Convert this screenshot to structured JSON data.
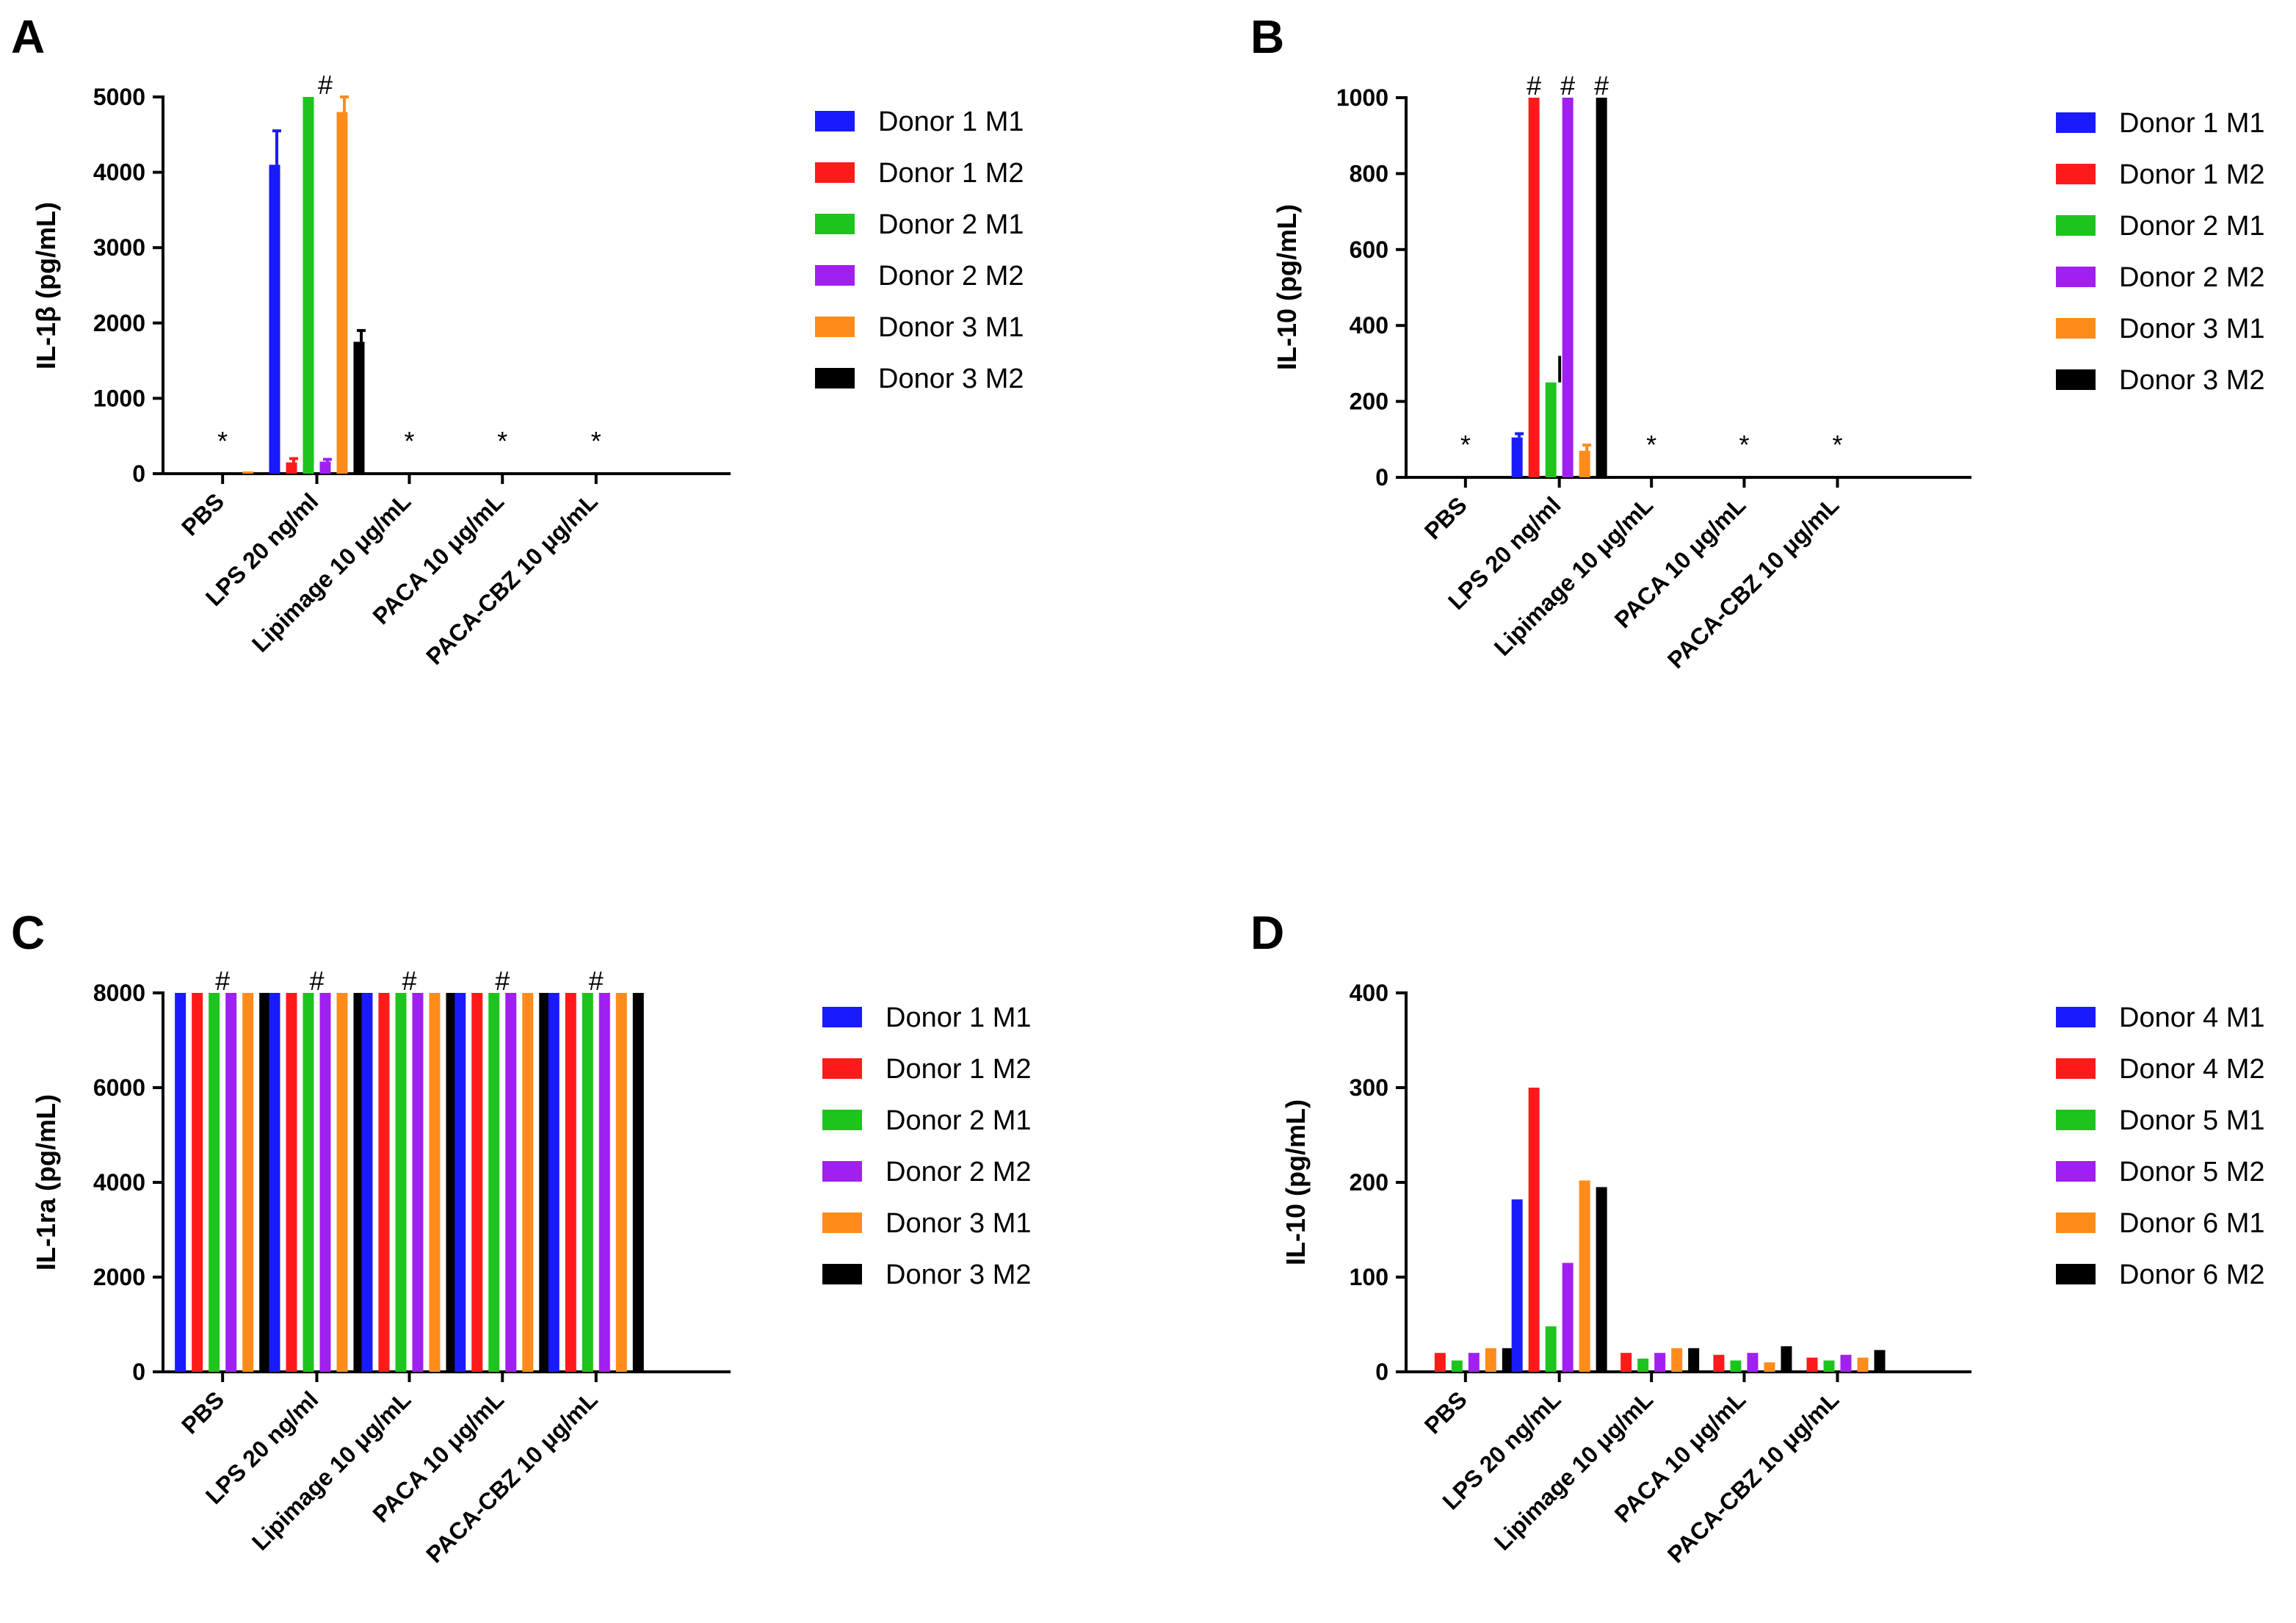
{
  "chart_data": [
    {
      "panel": "A",
      "type": "bar",
      "ylabel": "IL-1β (pg/mL)",
      "ylim": [
        0,
        5000
      ],
      "yticks": [
        "0",
        "1000",
        "2000",
        "3000",
        "4000",
        "5000"
      ],
      "categories": [
        "PBS",
        "LPS 20 ng/ml",
        "Lipimage 10 μg/mL",
        "PACA 10 μg/mL",
        "PACA-CBZ 10 μg/mL"
      ],
      "series": [
        {
          "name": "Donor 1 M1",
          "color": "#1a1aff",
          "values": [
            0,
            4100,
            0,
            0,
            0
          ],
          "errors": [
            0,
            450,
            0,
            0,
            0
          ]
        },
        {
          "name": "Donor 1 M2",
          "color": "#ff1a1a",
          "values": [
            0,
            150,
            0,
            0,
            0
          ],
          "errors": [
            0,
            50,
            0,
            0,
            0
          ]
        },
        {
          "name": "Donor 2 M1",
          "color": "#1ec41e",
          "values": [
            0,
            5000,
            0,
            0,
            0
          ],
          "errors": [
            0,
            0,
            0,
            0,
            0
          ]
        },
        {
          "name": "Donor 2 M2",
          "color": "#a020f0",
          "values": [
            0,
            160,
            0,
            0,
            0
          ],
          "errors": [
            0,
            30,
            0,
            0,
            0
          ]
        },
        {
          "name": "Donor 3 M1",
          "color": "#ff8c1a",
          "values": [
            30,
            4800,
            0,
            0,
            0
          ],
          "errors": [
            0,
            200,
            0,
            0,
            0
          ]
        },
        {
          "name": "Donor 3 M2",
          "color": "#000000",
          "values": [
            0,
            1750,
            0,
            0,
            0
          ],
          "errors": [
            0,
            150,
            0,
            0,
            0
          ]
        }
      ],
      "annotations": [
        "*",
        "#",
        "*",
        "*",
        "*"
      ]
    },
    {
      "panel": "B",
      "type": "bar",
      "ylabel": "IL-10 (pg/mL)",
      "ylim": [
        0,
        1000
      ],
      "yticks": [
        "0",
        "200",
        "400",
        "600",
        "800",
        "1000"
      ],
      "categories": [
        "PBS",
        "LPS 20 ng/ml",
        "Lipimage 10 μg/mL",
        "PACA 10 μg/mL",
        "PACA-CBZ 10 μg/mL"
      ],
      "series": [
        {
          "name": "Donor 1 M1",
          "color": "#1a1aff",
          "values": [
            0,
            105,
            0,
            0,
            0
          ],
          "errors": [
            0,
            10,
            0,
            0,
            0
          ]
        },
        {
          "name": "Donor 1 M2",
          "color": "#ff1a1a",
          "values": [
            0,
            1000,
            0,
            0,
            0
          ],
          "errors": [
            0,
            0,
            0,
            0,
            0
          ]
        },
        {
          "name": "Donor 2 M1",
          "color": "#1ec41e",
          "values": [
            0,
            250,
            0,
            0,
            0
          ],
          "errors": [
            0,
            0,
            0,
            0,
            0
          ]
        },
        {
          "name": "Donor 2 M2",
          "color": "#a020f0",
          "values": [
            0,
            1000,
            0,
            0,
            0
          ],
          "errors": [
            0,
            0,
            0,
            0,
            0
          ]
        },
        {
          "name": "Donor 3 M1",
          "color": "#ff8c1a",
          "values": [
            0,
            70,
            0,
            0,
            0
          ],
          "errors": [
            0,
            15,
            0,
            0,
            0
          ]
        },
        {
          "name": "Donor 3 M2",
          "color": "#000000",
          "values": [
            0,
            1000,
            0,
            0,
            0
          ],
          "errors": [
            0,
            0,
            0,
            0,
            0
          ]
        }
      ],
      "annotations": [
        "*",
        "# # #",
        "*",
        "*",
        "*"
      ],
      "extra_errors": [
        {
          "series": 2,
          "category": 1,
          "top": 320
        }
      ]
    },
    {
      "panel": "C",
      "type": "bar",
      "ylabel": "IL-1ra (pg/mL)",
      "ylim": [
        0,
        8000
      ],
      "yticks": [
        "0",
        "2000",
        "4000",
        "6000",
        "8000"
      ],
      "categories": [
        "PBS",
        "LPS 20 ng/ml",
        "Lipimage 10 μg/mL",
        "PACA 10 μg/mL",
        "PACA-CBZ 10 μg/mL"
      ],
      "series": [
        {
          "name": "Donor 1 M1",
          "color": "#1a1aff",
          "values": [
            8000,
            8000,
            8000,
            8000,
            8000
          ]
        },
        {
          "name": "Donor 1 M2",
          "color": "#ff1a1a",
          "values": [
            8000,
            8000,
            8000,
            8000,
            8000
          ]
        },
        {
          "name": "Donor 2 M1",
          "color": "#1ec41e",
          "values": [
            8000,
            8000,
            8000,
            8000,
            8000
          ]
        },
        {
          "name": "Donor 2 M2",
          "color": "#a020f0",
          "values": [
            8000,
            8000,
            8000,
            8000,
            8000
          ]
        },
        {
          "name": "Donor 3 M1",
          "color": "#ff8c1a",
          "values": [
            8000,
            8000,
            8000,
            8000,
            8000
          ]
        },
        {
          "name": "Donor 3 M2",
          "color": "#000000",
          "values": [
            8000,
            8000,
            8000,
            8000,
            8000
          ]
        }
      ],
      "annotations": [
        "#",
        "#",
        "#",
        "#",
        "#"
      ]
    },
    {
      "panel": "D",
      "type": "bar",
      "ylabel": "IL-10 (pg/mL)",
      "ylim": [
        0,
        400
      ],
      "yticks": [
        "0",
        "100",
        "200",
        "300",
        "400"
      ],
      "categories": [
        "PBS",
        "LPS 20 ng/mL",
        "Lipimage 10 μg/mL",
        "PACA 10 μg/mL",
        "PACA-CBZ 10 μg/mL"
      ],
      "series": [
        {
          "name": "Donor 4 M1",
          "color": "#1a1aff",
          "values": [
            0,
            182,
            0,
            0,
            0
          ]
        },
        {
          "name": "Donor 4 M2",
          "color": "#ff1a1a",
          "values": [
            20,
            300,
            20,
            18,
            15
          ]
        },
        {
          "name": "Donor 5 M1",
          "color": "#1ec41e",
          "values": [
            12,
            48,
            14,
            12,
            12
          ]
        },
        {
          "name": "Donor 5 M2",
          "color": "#a020f0",
          "values": [
            20,
            115,
            20,
            20,
            18
          ]
        },
        {
          "name": "Donor 6 M1",
          "color": "#ff8c1a",
          "values": [
            25,
            202,
            25,
            10,
            15
          ]
        },
        {
          "name": "Donor 6 M2",
          "color": "#000000",
          "values": [
            25,
            195,
            25,
            27,
            23
          ]
        }
      ],
      "annotations": [
        "",
        "",
        "",
        "",
        ""
      ]
    }
  ]
}
